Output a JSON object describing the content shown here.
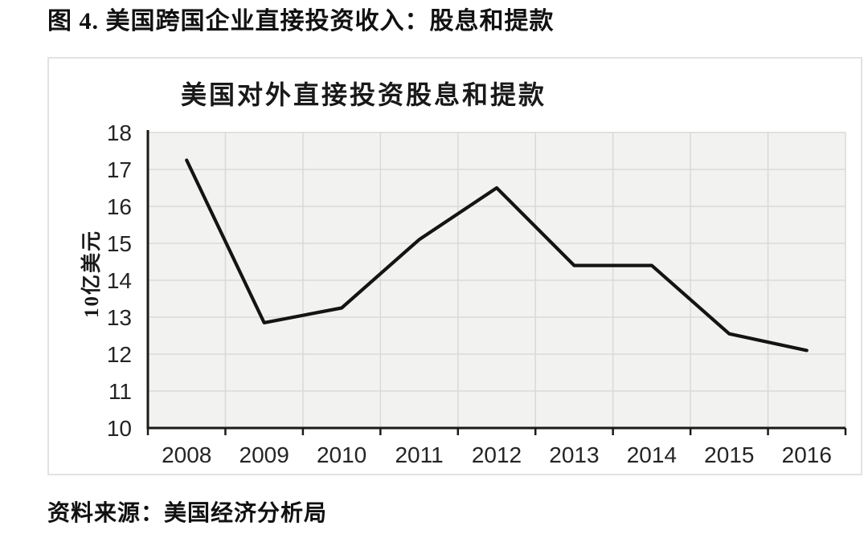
{
  "page": {
    "title": "图 4. 美国跨国企业直接投资收入：股息和提款",
    "source_note": "资料来源：美国经济分析局"
  },
  "chart_data": {
    "type": "line",
    "title": "美国对外直接投资股息和提款",
    "xlabel": "",
    "ylabel": "10亿美元",
    "categories": [
      "2008",
      "2009",
      "2010",
      "2011",
      "2012",
      "2013",
      "2014",
      "2015",
      "2016"
    ],
    "values": [
      17.25,
      12.85,
      13.25,
      15.1,
      16.5,
      14.4,
      14.4,
      12.55,
      12.1
    ],
    "ylim": [
      10,
      18
    ],
    "yticks": [
      10,
      11,
      12,
      13,
      14,
      15,
      16,
      17,
      18
    ],
    "grid": true,
    "legend": "none",
    "line_color": "#141414",
    "axis_color": "#1a1a1a",
    "grid_color": "#d9d9d9",
    "plot_bg": "#f2f2f1"
  }
}
